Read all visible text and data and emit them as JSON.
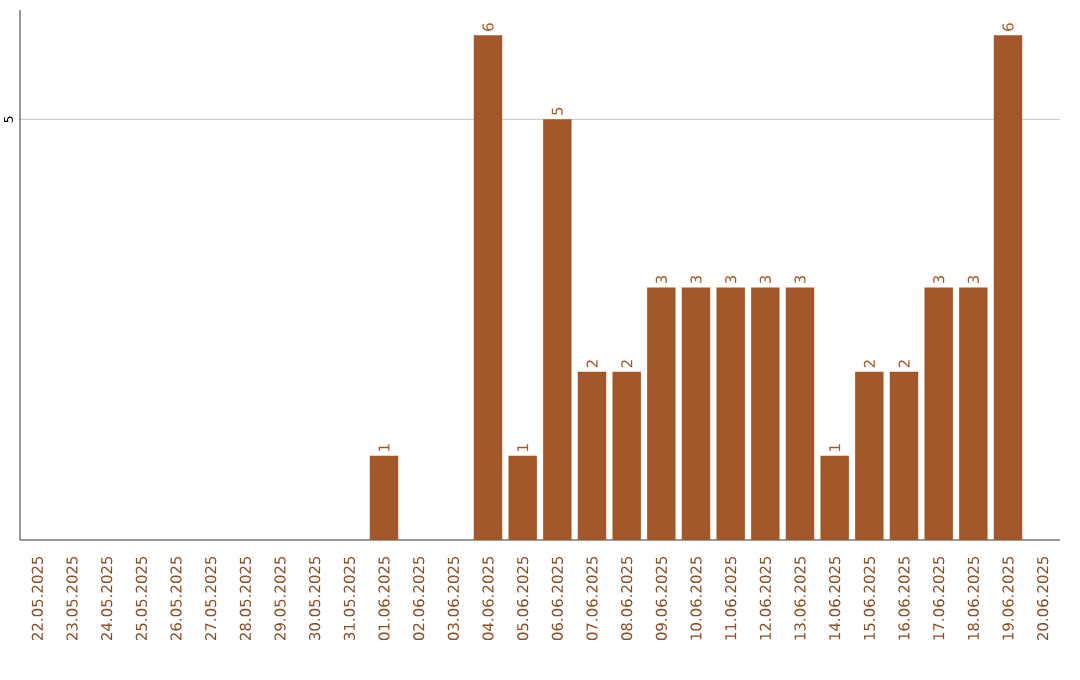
{
  "chart_data": {
    "type": "bar",
    "categories": [
      "22.05.2025",
      "23.05.2025",
      "24.05.2025",
      "25.05.2025",
      "26.05.2025",
      "27.05.2025",
      "28.05.2025",
      "29.05.2025",
      "30.05.2025",
      "31.05.2025",
      "01.06.2025",
      "02.06.2025",
      "03.06.2025",
      "04.06.2025",
      "05.06.2025",
      "06.06.2025",
      "07.06.2025",
      "08.06.2025",
      "09.06.2025",
      "10.06.2025",
      "11.06.2025",
      "12.06.2025",
      "13.06.2025",
      "14.06.2025",
      "15.06.2025",
      "16.06.2025",
      "17.06.2025",
      "18.06.2025",
      "19.06.2025",
      "20.06.2025"
    ],
    "values": [
      0,
      0,
      0,
      0,
      0,
      0,
      0,
      0,
      0,
      0,
      1,
      0,
      0,
      6,
      1,
      5,
      2,
      2,
      3,
      3,
      3,
      3,
      3,
      1,
      2,
      2,
      3,
      3,
      6,
      0
    ],
    "value_labels": [
      null,
      null,
      null,
      null,
      null,
      null,
      null,
      null,
      null,
      null,
      "1",
      null,
      null,
      "6",
      "1",
      "5",
      "2",
      "2",
      "3",
      "3",
      "3",
      "3",
      "3",
      "1",
      "2",
      "2",
      "3",
      "3",
      "6",
      null
    ],
    "color": "#a0582a",
    "ylim": [
      0,
      6.3
    ],
    "yticks": [
      5
    ],
    "grid": "y"
  }
}
